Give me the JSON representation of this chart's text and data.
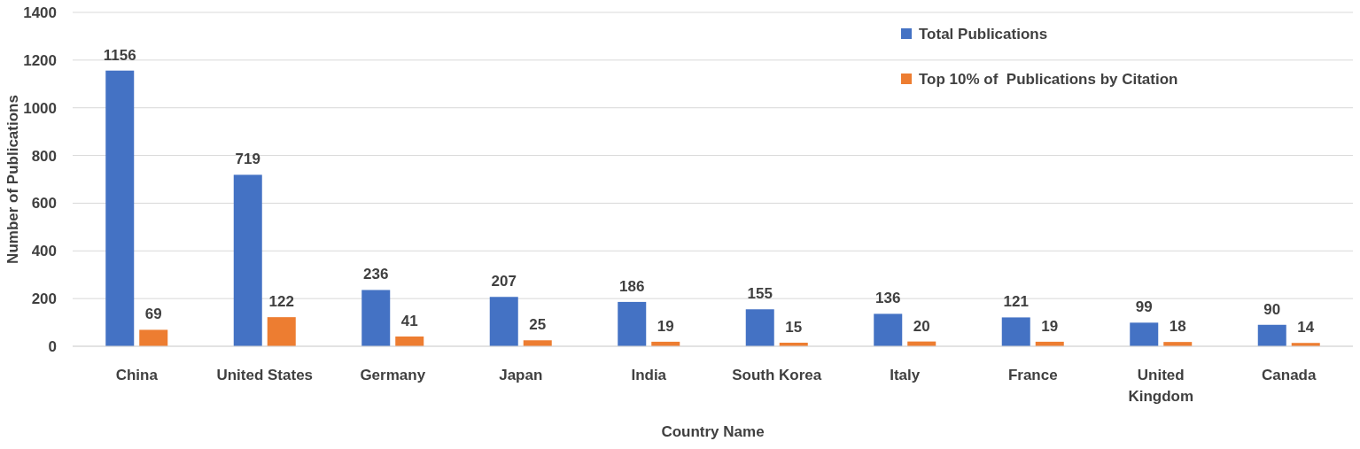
{
  "chart_data": {
    "type": "bar",
    "xlabel": "Country Name",
    "ylabel": "Number of Publications",
    "categories": [
      "China",
      "United States",
      "Germany",
      "Japan",
      "India",
      "South Korea",
      "Italy",
      "France",
      "United Kingdom",
      "Canada"
    ],
    "series": [
      {
        "name": "Total Publications",
        "color": "#4472c4",
        "values": [
          1156,
          719,
          236,
          207,
          186,
          155,
          136,
          121,
          99,
          90
        ]
      },
      {
        "name": "Top 10% of  Publications by Citation",
        "color": "#ed7d31",
        "values": [
          69,
          122,
          41,
          25,
          19,
          15,
          20,
          19,
          18,
          14
        ]
      }
    ],
    "ylim": [
      0,
      1400
    ],
    "yticks": [
      0,
      200,
      400,
      600,
      800,
      1000,
      1200,
      1400
    ],
    "grid": "y",
    "legend": "top right",
    "data_labels": true
  }
}
